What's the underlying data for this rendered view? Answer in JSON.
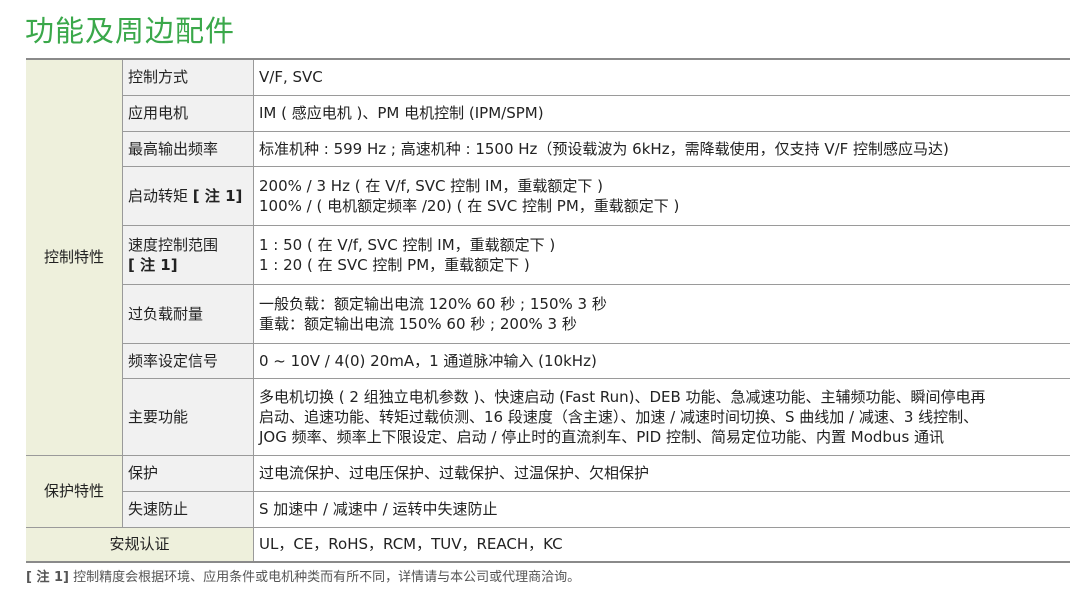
{
  "title": "功能及周边配件",
  "groups": {
    "control": "控制特性",
    "protect": "保护特性",
    "cert": "安规认证"
  },
  "rows": [
    {
      "key": "控制方式",
      "lines": [
        "V/F, SVC"
      ]
    },
    {
      "key": "应用电机",
      "lines": [
        "IM ( 感应电机 )、PM 电机控制 (IPM/SPM)"
      ]
    },
    {
      "key": "最高输出频率",
      "lines": [
        "标准机种 : 599 Hz ; 高速机种 : 1500 Hz（预设载波为 6kHz，需降载使用，仅支持 V/F 控制感应马达)"
      ]
    },
    {
      "key": "启动转矩",
      "note": "[ 注 1]",
      "lines": [
        "200%  /  3 Hz ( 在 V/f, SVC 控制 IM，重载额定下 )",
        "100%  / ( 电机额定频率 /20)  ( 在 SVC 控制 PM，重载额定下 )"
      ]
    },
    {
      "key": "速度控制范围",
      "note": "[ 注 1]",
      "lines": [
        "1 : 50 ( 在 V/f, SVC 控制 IM，重载额定下 )",
        "1 : 20 ( 在 SVC 控制 PM，重载额定下 )"
      ]
    },
    {
      "key": "过负载耐量",
      "lines": [
        "一般负载：额定输出电流 120% 60 秒 ; 150% 3 秒",
        "重载：额定输出电流 150% 60 秒 ; 200% 3 秒"
      ]
    },
    {
      "key": "频率设定信号",
      "lines": [
        "0 ~ 10V / 4(0) 20mA，1 通道脉冲输入 (10kHz)"
      ]
    },
    {
      "key": "主要功能",
      "lines": [
        "多电机切换 ( 2 组独立电机参数 )、快速启动 (Fast Run)、DEB 功能、急减速功能、主辅频功能、瞬间停电再",
        "启动、追速功能、转矩过载侦测、16 段速度（含主速）、加速 / 减速时间切换、S 曲线加 / 减速、3 线控制、",
        "JOG 频率、频率上下限设定、启动 / 停止时的直流刹车、PID 控制、简易定位功能、内置 Modbus 通讯"
      ]
    },
    {
      "key": "保护",
      "lines": [
        "过电流保护、过电压保护、过载保护、过温保护、欠相保护"
      ]
    },
    {
      "key": "失速防止",
      "lines": [
        "S 加速中 / 减速中 / 运转中失速防止"
      ]
    },
    {
      "key": "安规认证",
      "lines": [
        "UL，CE，RoHS，RCM，TUV，REACH，KC"
      ]
    }
  ],
  "footnote": {
    "tag": "[ 注 1]",
    "text": " 控制精度会根据环境、应用条件或电机种类而有所不同，详情请与本公司或代理商洽询。"
  },
  "colors": {
    "title": "#3aa84a",
    "group_bg": "#eef0dc",
    "key_bg": "#f1f1f1"
  }
}
